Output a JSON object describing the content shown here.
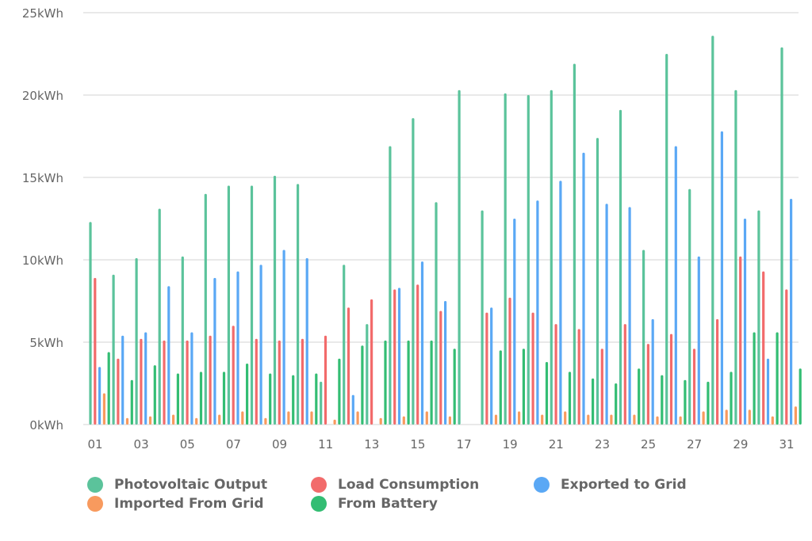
{
  "chart_data": {
    "type": "bar",
    "title": "",
    "xlabel": "",
    "ylabel": "",
    "ylim": [
      0,
      25
    ],
    "y_unit": "kWh",
    "y_ticks": [
      "0kWh",
      "5kWh",
      "10kWh",
      "15kWh",
      "20kWh",
      "25kWh"
    ],
    "y_tick_values": [
      0,
      5,
      10,
      15,
      20,
      25
    ],
    "grid": true,
    "legend_position": "bottom",
    "categories": [
      "01",
      "02",
      "03",
      "04",
      "05",
      "06",
      "07",
      "08",
      "09",
      "10",
      "11",
      "12",
      "13",
      "14",
      "15",
      "16",
      "17",
      "18",
      "19",
      "20",
      "21",
      "22",
      "23",
      "24",
      "25",
      "26",
      "27",
      "28",
      "29",
      "30",
      "31"
    ],
    "x_tick_labels_shown": [
      "01",
      "03",
      "05",
      "07",
      "09",
      "11",
      "13",
      "15",
      "17",
      "19",
      "21",
      "23",
      "25",
      "27",
      "29",
      "31"
    ],
    "series": [
      {
        "name": "Photovoltaic Output",
        "color": "#5bc39b",
        "values": [
          12.3,
          9.1,
          10.1,
          13.1,
          10.2,
          14.0,
          14.5,
          14.5,
          15.1,
          14.6,
          2.6,
          9.7,
          6.1,
          16.9,
          18.6,
          13.5,
          20.3,
          13.0,
          20.1,
          20.0,
          20.3,
          21.9,
          17.4,
          19.1,
          10.6,
          22.5,
          14.3,
          23.6,
          20.3,
          13.0,
          22.9
        ]
      },
      {
        "name": "Load Consumption",
        "color": "#f26b6b",
        "values": [
          8.9,
          4.0,
          5.2,
          5.1,
          5.1,
          5.4,
          6.0,
          5.2,
          5.1,
          5.2,
          5.4,
          7.1,
          7.6,
          8.2,
          8.5,
          6.9,
          0,
          6.8,
          7.7,
          6.8,
          6.1,
          5.8,
          4.6,
          6.1,
          4.9,
          5.5,
          4.6,
          6.4,
          10.2,
          9.3,
          8.2
        ]
      },
      {
        "name": "Exported to Grid",
        "color": "#5aa8f5",
        "values": [
          3.5,
          5.4,
          5.6,
          8.4,
          5.6,
          8.9,
          9.3,
          9.7,
          10.6,
          10.1,
          0,
          1.8,
          0,
          8.3,
          9.9,
          7.5,
          0,
          7.1,
          12.5,
          13.6,
          14.8,
          16.5,
          13.4,
          13.2,
          6.4,
          16.9,
          10.2,
          17.8,
          12.5,
          4.0,
          13.7
        ]
      },
      {
        "name": "Imported From Grid",
        "color": "#f89a5e",
        "values": [
          1.9,
          0.4,
          0.5,
          0.6,
          0.4,
          0.6,
          0.8,
          0.4,
          0.8,
          0.8,
          0.3,
          0.8,
          0.4,
          0.5,
          0.8,
          0.5,
          0,
          0.6,
          0.8,
          0.6,
          0.8,
          0.6,
          0.6,
          0.6,
          0.5,
          0.5,
          0.8,
          0.9,
          0.9,
          0.5,
          1.1
        ]
      },
      {
        "name": "From Battery",
        "color": "#33bd73",
        "values": [
          4.4,
          2.7,
          3.6,
          3.1,
          3.2,
          3.2,
          3.7,
          3.1,
          3.0,
          3.1,
          4.0,
          4.8,
          5.1,
          5.1,
          5.1,
          4.6,
          0,
          4.5,
          4.6,
          3.8,
          3.2,
          2.8,
          2.5,
          3.4,
          3.0,
          2.7,
          2.6,
          3.2,
          5.6,
          5.6,
          3.4
        ]
      }
    ]
  },
  "legend": {
    "items": [
      {
        "label": "Photovoltaic Output",
        "color": "#5bc39b"
      },
      {
        "label": "Load Consumption",
        "color": "#f26b6b"
      },
      {
        "label": "Exported to Grid",
        "color": "#5aa8f5"
      },
      {
        "label": "Imported From Grid",
        "color": "#f89a5e"
      },
      {
        "label": "From Battery",
        "color": "#33bd73"
      }
    ]
  }
}
